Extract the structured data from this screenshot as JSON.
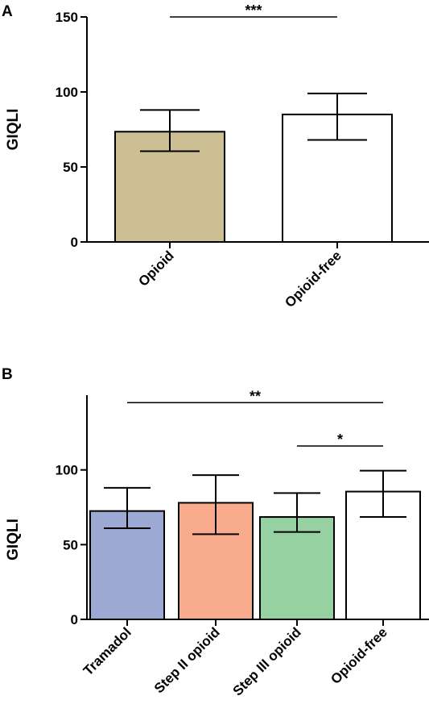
{
  "chart_data": [
    {
      "panel": "A",
      "type": "bar",
      "ylabel": "GIQLI",
      "ylim": [
        0,
        150
      ],
      "yticks": [
        0,
        50,
        100,
        150
      ],
      "yticks_labels": [
        "0",
        "50",
        "100",
        "150"
      ],
      "categories": [
        "Opioid",
        "Opioid-free"
      ],
      "values": [
        73.5,
        85
      ],
      "error_low": [
        60.5,
        68
      ],
      "error_high": [
        88,
        99
      ],
      "colors": [
        "#cbbf93",
        "#ffffff"
      ],
      "significance": [
        {
          "from": 0,
          "to": 1,
          "label": "***",
          "level": 150
        }
      ],
      "grid": false
    },
    {
      "panel": "B",
      "type": "bar",
      "ylabel": "GIQLI",
      "ylim": [
        0,
        150
      ],
      "yticks": [
        0,
        50,
        100
      ],
      "yticks_labels": [
        "0",
        "50",
        "100"
      ],
      "categories": [
        "Tramadol",
        "Step II opioid",
        "Step III opioid",
        "Opioid-free"
      ],
      "values": [
        72.5,
        78,
        68.5,
        85.5
      ],
      "error_low": [
        61,
        57,
        58.5,
        68.5
      ],
      "error_high": [
        88,
        96.5,
        84.5,
        99.5
      ],
      "colors": [
        "#9ca9d3",
        "#f8ab8d",
        "#96d1a2",
        "#ffffff"
      ],
      "significance": [
        {
          "from": 0,
          "to": 3,
          "label": "**",
          "level": 145
        },
        {
          "from": 2,
          "to": 3,
          "label": "*",
          "level": 116
        }
      ],
      "grid": false
    }
  ]
}
